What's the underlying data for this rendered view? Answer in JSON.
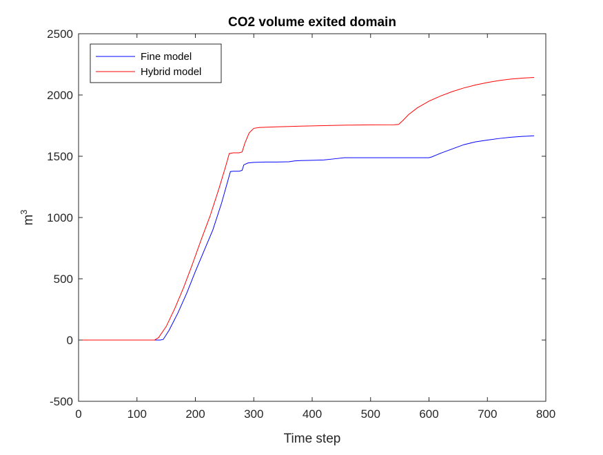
{
  "chart_data": {
    "type": "line",
    "title": "CO2 volume exited domain",
    "xlabel": "Time step",
    "ylabel_base": "m",
    "ylabel_sup": "3",
    "xlim": [
      0,
      800
    ],
    "ylim": [
      -500,
      2500
    ],
    "xticks": [
      0,
      100,
      200,
      300,
      400,
      500,
      600,
      700,
      800
    ],
    "yticks": [
      -500,
      0,
      500,
      1000,
      1500,
      2000,
      2500
    ],
    "xtick_labels": [
      "0",
      "100",
      "200",
      "300",
      "400",
      "500",
      "600",
      "700",
      "800"
    ],
    "ytick_labels": [
      "-500",
      "0",
      "500",
      "1000",
      "1500",
      "2000",
      "2500"
    ],
    "grid": false,
    "legend_position": "top-left",
    "series": [
      {
        "name": "Fine model",
        "color": "#0000ff",
        "points": [
          [
            0,
            0
          ],
          [
            140,
            0
          ],
          [
            145,
            5
          ],
          [
            155,
            80
          ],
          [
            170,
            220
          ],
          [
            185,
            380
          ],
          [
            200,
            560
          ],
          [
            215,
            730
          ],
          [
            230,
            900
          ],
          [
            245,
            1120
          ],
          [
            255,
            1290
          ],
          [
            260,
            1375
          ],
          [
            265,
            1378
          ],
          [
            275,
            1378
          ],
          [
            280,
            1385
          ],
          [
            283,
            1430
          ],
          [
            290,
            1445
          ],
          [
            300,
            1450
          ],
          [
            320,
            1453
          ],
          [
            340,
            1453
          ],
          [
            360,
            1455
          ],
          [
            370,
            1462
          ],
          [
            380,
            1465
          ],
          [
            400,
            1467
          ],
          [
            420,
            1470
          ],
          [
            440,
            1480
          ],
          [
            455,
            1488
          ],
          [
            500,
            1488
          ],
          [
            550,
            1488
          ],
          [
            600,
            1488
          ],
          [
            605,
            1495
          ],
          [
            620,
            1525
          ],
          [
            640,
            1560
          ],
          [
            660,
            1595
          ],
          [
            680,
            1618
          ],
          [
            700,
            1632
          ],
          [
            720,
            1645
          ],
          [
            740,
            1655
          ],
          [
            760,
            1662
          ],
          [
            780,
            1667
          ]
        ]
      },
      {
        "name": "Hybrid model",
        "color": "#ff0000",
        "points": [
          [
            0,
            0
          ],
          [
            130,
            0
          ],
          [
            137,
            20
          ],
          [
            150,
            110
          ],
          [
            165,
            260
          ],
          [
            180,
            430
          ],
          [
            195,
            620
          ],
          [
            210,
            820
          ],
          [
            225,
            1010
          ],
          [
            240,
            1230
          ],
          [
            252,
            1420
          ],
          [
            258,
            1522
          ],
          [
            265,
            1528
          ],
          [
            275,
            1528
          ],
          [
            280,
            1535
          ],
          [
            285,
            1610
          ],
          [
            292,
            1690
          ],
          [
            300,
            1728
          ],
          [
            310,
            1735
          ],
          [
            340,
            1740
          ],
          [
            380,
            1746
          ],
          [
            420,
            1750
          ],
          [
            460,
            1754
          ],
          [
            500,
            1756
          ],
          [
            540,
            1757
          ],
          [
            548,
            1760
          ],
          [
            555,
            1790
          ],
          [
            565,
            1840
          ],
          [
            580,
            1895
          ],
          [
            600,
            1950
          ],
          [
            620,
            1992
          ],
          [
            640,
            2028
          ],
          [
            660,
            2058
          ],
          [
            680,
            2082
          ],
          [
            700,
            2102
          ],
          [
            720,
            2118
          ],
          [
            740,
            2130
          ],
          [
            760,
            2138
          ],
          [
            780,
            2143
          ]
        ]
      }
    ]
  }
}
